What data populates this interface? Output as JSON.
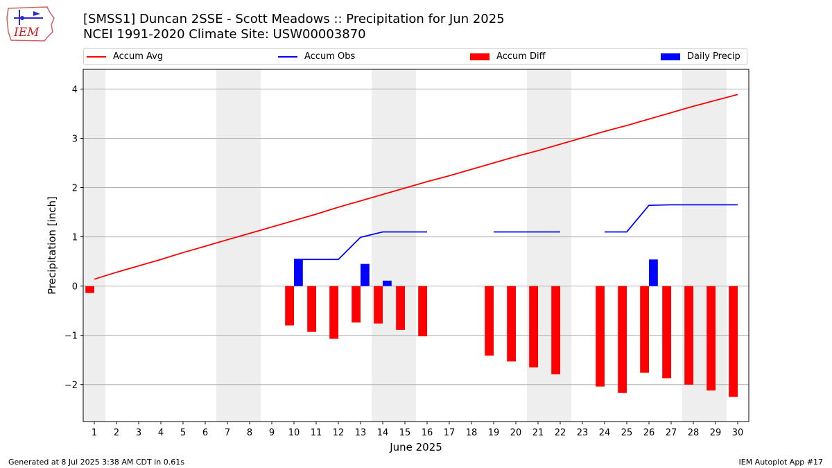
{
  "header": {
    "logo_text": "IEM",
    "title_line1": "[SMSS1] Duncan 2SSE - Scott Meadows :: Precipitation for Jun 2025",
    "title_line2": "NCEI 1991-2020 Climate Site: USW00003870"
  },
  "footer": {
    "left": "Generated at 8 Jul 2025 3:38 AM CDT in 0.61s",
    "right": "IEM Autoplot App #17"
  },
  "colors": {
    "avg": "#ff0000",
    "obs": "#0000ff",
    "diff": "#ff0000",
    "daily": "#0000ff",
    "weekend_shade": "#eeeeee",
    "grid": "#b0b0b0"
  },
  "chart_data": {
    "type": "bar",
    "xlabel": "June 2025",
    "ylabel": "Precipitation [inch]",
    "xlim": [
      0.5,
      30.5
    ],
    "ylim": [
      -2.75,
      4.4
    ],
    "yticks": [
      -2,
      -1,
      0,
      1,
      2,
      3,
      4
    ],
    "ytick_labels": [
      "−2",
      "−1",
      "0",
      "1",
      "2",
      "3",
      "4"
    ],
    "x": [
      1,
      2,
      3,
      4,
      5,
      6,
      7,
      8,
      9,
      10,
      11,
      12,
      13,
      14,
      15,
      16,
      17,
      18,
      19,
      20,
      21,
      22,
      23,
      24,
      25,
      26,
      27,
      28,
      29,
      30
    ],
    "grid": "horizontal",
    "legend_position": "top",
    "weekend_days": [
      1,
      7,
      8,
      14,
      15,
      21,
      22,
      28,
      29
    ],
    "series": [
      {
        "name": "Accum Avg",
        "kind": "line",
        "values": [
          0.14,
          0.28,
          0.41,
          0.54,
          0.68,
          0.81,
          0.94,
          1.07,
          1.2,
          1.33,
          1.46,
          1.6,
          1.73,
          1.86,
          1.99,
          2.12,
          2.24,
          2.37,
          2.5,
          2.63,
          2.75,
          2.88,
          3.01,
          3.14,
          3.26,
          3.39,
          3.52,
          3.65,
          3.77,
          3.89
        ]
      },
      {
        "name": "Accum Obs",
        "kind": "line",
        "values": [
          null,
          null,
          null,
          null,
          null,
          null,
          null,
          null,
          null,
          0.54,
          0.54,
          0.54,
          0.99,
          1.1,
          1.1,
          1.1,
          null,
          null,
          1.1,
          1.1,
          1.1,
          1.1,
          null,
          1.1,
          1.1,
          1.64,
          1.65,
          1.65,
          1.65,
          1.65
        ]
      },
      {
        "name": "Accum Diff",
        "kind": "bar",
        "values": [
          -0.14,
          null,
          null,
          null,
          null,
          null,
          null,
          null,
          null,
          -0.8,
          -0.93,
          -1.07,
          -0.74,
          -0.76,
          -0.89,
          -1.02,
          null,
          null,
          -1.41,
          -1.53,
          -1.65,
          -1.79,
          null,
          -2.04,
          -2.17,
          -1.76,
          -1.87,
          -2.0,
          -2.12,
          -2.25
        ]
      },
      {
        "name": "Daily Precip",
        "kind": "bar",
        "values": [
          0,
          0,
          0,
          0,
          0,
          0,
          0,
          0,
          0,
          0.54,
          0,
          0,
          0.45,
          0.11,
          0,
          0,
          0,
          0,
          0,
          0,
          0,
          0,
          0,
          0,
          0,
          0.54,
          0,
          0,
          0,
          0
        ]
      }
    ]
  }
}
